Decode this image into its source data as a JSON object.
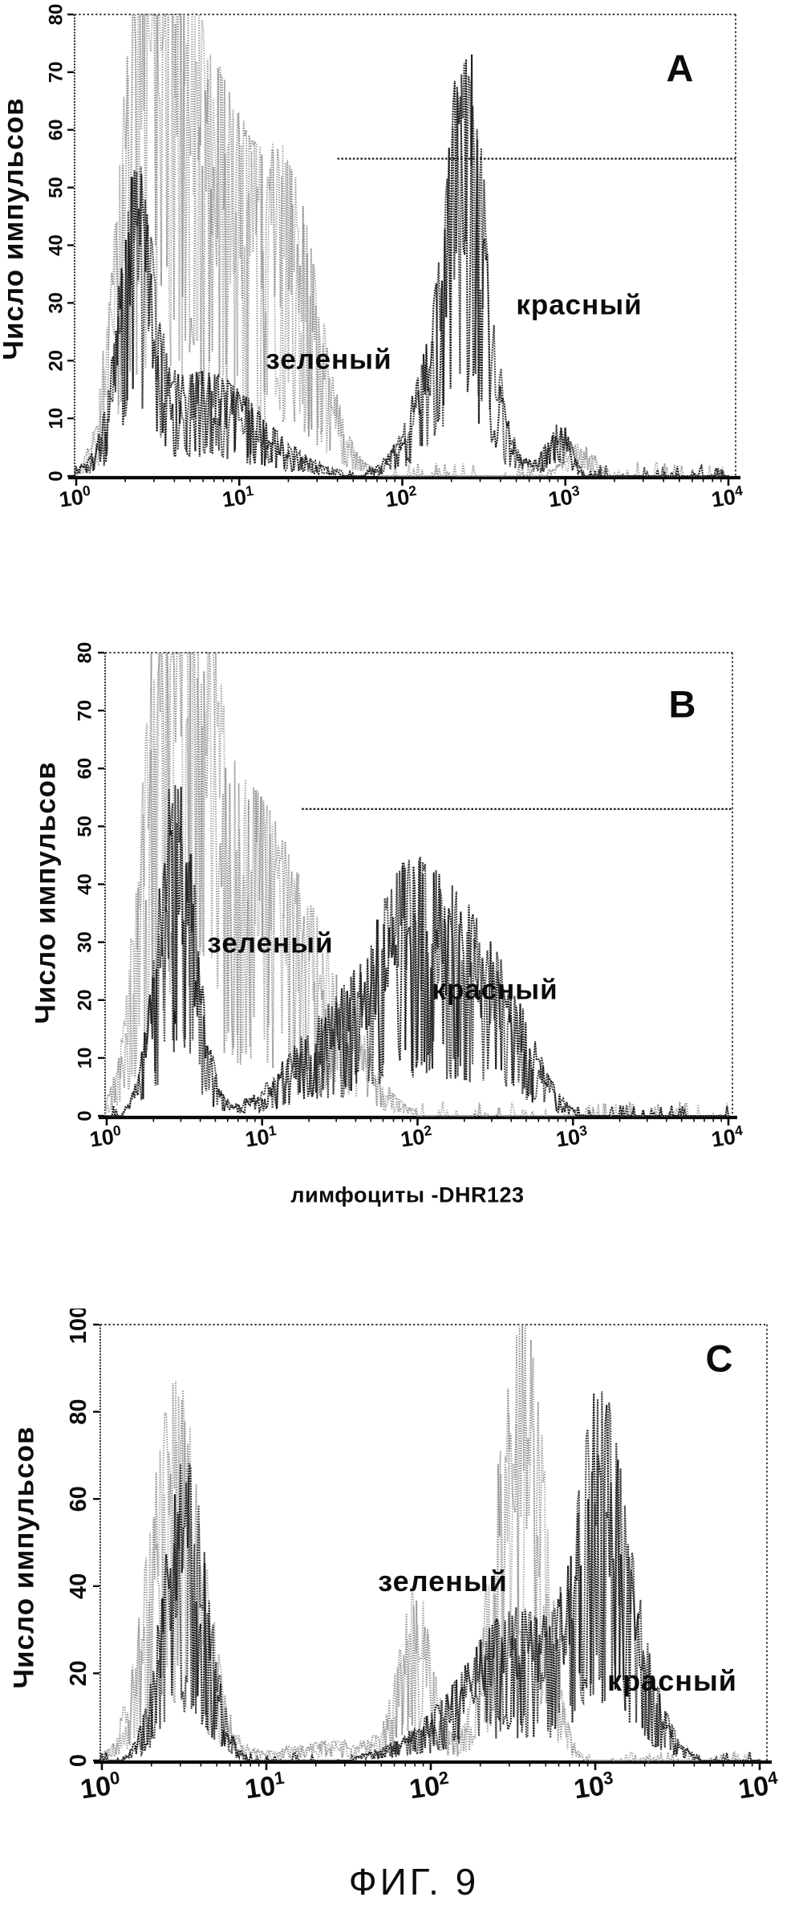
{
  "figure": {
    "caption": "ФИГ. 9"
  },
  "colors": {
    "green": "#8e8e8e",
    "red": "#1a1a1a",
    "axis": "#0a0a0a",
    "border": "#222222",
    "gate": "#161616"
  },
  "chart_data": [
    {
      "panel": "A",
      "type": "histogram-overlay",
      "xscale": "log",
      "xlim": [
        1,
        10000
      ],
      "xticks": [
        0,
        1,
        2,
        3,
        4
      ],
      "ylim": [
        0,
        80
      ],
      "yticks": [
        0,
        10,
        20,
        30,
        40,
        50,
        60,
        70,
        80
      ],
      "ylabel": "Число импульсов",
      "gate": {
        "level": 55,
        "from_x": 40
      },
      "series": [
        {
          "name": "зеленый",
          "color": "green",
          "seed": 11,
          "base": 2.5,
          "peaks": [
            {
              "x": 2.4,
              "h": 73,
              "w": 0.13
            },
            {
              "x": 3.6,
              "h": 55,
              "w": 0.12
            },
            {
              "x": 6,
              "h": 40,
              "w": 0.2
            },
            {
              "x": 12,
              "h": 33,
              "w": 0.28
            },
            {
              "x": 22,
              "h": 24,
              "w": 0.16
            },
            {
              "x": 1200,
              "h": 5,
              "w": 0.1
            }
          ]
        },
        {
          "name": "красный",
          "color": "red",
          "seed": 7,
          "base": 2,
          "peaks": [
            {
              "x": 2.3,
              "h": 40,
              "w": 0.1
            },
            {
              "x": 6,
              "h": 16,
              "w": 0.35
            },
            {
              "x": 250,
              "h": 43,
              "w": 0.1
            },
            {
              "x": 210,
              "h": 28,
              "w": 0.2
            },
            {
              "x": 900,
              "h": 9,
              "w": 0.07
            }
          ]
        }
      ]
    },
    {
      "panel": "B",
      "type": "histogram-overlay",
      "xscale": "log",
      "xlim": [
        1,
        10000
      ],
      "xticks": [
        0,
        1,
        2,
        3,
        4
      ],
      "ylim": [
        0,
        80
      ],
      "yticks": [
        0,
        10,
        20,
        30,
        40,
        50,
        60,
        70,
        80
      ],
      "ylabel": "Число импульсов",
      "caption": "лимфоциты -DHR123",
      "gate": {
        "level": 53,
        "from_x": 18
      },
      "series": [
        {
          "name": "зеленый",
          "color": "green",
          "seed": 21,
          "base": 2.5,
          "peaks": [
            {
              "x": 2.3,
              "h": 76,
              "w": 0.14
            },
            {
              "x": 3.6,
              "h": 60,
              "w": 0.13
            },
            {
              "x": 7,
              "h": 36,
              "w": 0.25
            },
            {
              "x": 15,
              "h": 22,
              "w": 0.3
            },
            {
              "x": 30,
              "h": 9,
              "w": 0.2
            }
          ]
        },
        {
          "name": "красный",
          "color": "red",
          "seed": 5,
          "base": 2,
          "peaks": [
            {
              "x": 2.8,
              "h": 54,
              "w": 0.12
            },
            {
              "x": 30,
              "h": 16,
              "w": 0.3
            },
            {
              "x": 80,
              "h": 25,
              "w": 0.2
            },
            {
              "x": 160,
              "h": 22,
              "w": 0.2
            },
            {
              "x": 300,
              "h": 15,
              "w": 0.18
            },
            {
              "x": 500,
              "h": 7,
              "w": 0.15
            }
          ]
        }
      ]
    },
    {
      "panel": "C",
      "type": "histogram-overlay",
      "xscale": "log",
      "xlim": [
        1,
        10000
      ],
      "xticks": [
        0,
        1,
        2,
        3,
        4
      ],
      "ylim": [
        0,
        100
      ],
      "yticks": [
        0,
        20,
        40,
        60,
        80,
        100
      ],
      "ylabel": "Число импульсов",
      "series": [
        {
          "name": "зеленый",
          "color": "green",
          "seed": 31,
          "base": 2,
          "peaks": [
            {
              "x": 2.8,
              "h": 77,
              "w": 0.16
            },
            {
              "x": 80,
              "h": 33,
              "w": 0.1
            },
            {
              "x": 300,
              "h": 65,
              "w": 0.13
            },
            {
              "x": 430,
              "h": 48,
              "w": 0.1
            },
            {
              "x": 30,
              "h": 4,
              "w": 0.4
            }
          ]
        },
        {
          "name": "красный",
          "color": "red",
          "seed": 13,
          "base": 2,
          "peaks": [
            {
              "x": 3.2,
              "h": 62,
              "w": 0.13
            },
            {
              "x": 350,
              "h": 26,
              "w": 0.25
            },
            {
              "x": 1000,
              "h": 46,
              "w": 0.14
            },
            {
              "x": 1400,
              "h": 32,
              "w": 0.18
            },
            {
              "x": 150,
              "h": 9,
              "w": 0.3
            }
          ]
        }
      ]
    }
  ]
}
